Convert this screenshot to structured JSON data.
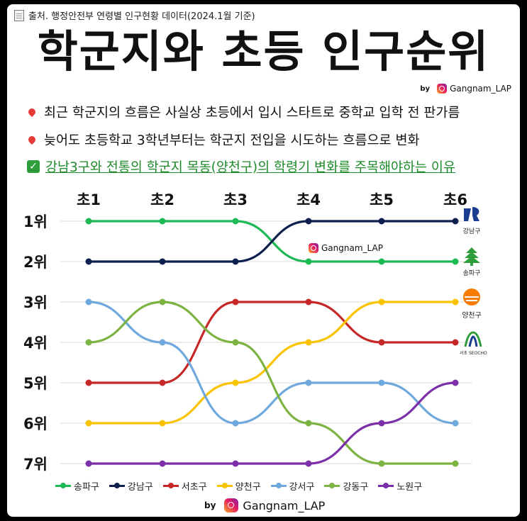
{
  "header": {
    "source": "출처. 행정안전부 연령별 인구현황 데이터(2024.1월 기준)",
    "title": "학군지와 초등 인구순위",
    "by": "by",
    "handle": "Gangnam_LAP"
  },
  "bullets": [
    "최근 학군지의 흐름은 사실상 초등에서 입시 스타트로 중학교 입학 전 판가름",
    "늦어도 초등학교 3학년부터는 학군지 전입을 시도하는 흐름으로 변화",
    "강남3구와 전통의 학군지 목동(양천구)의 학령기 변화를 주목해야하는 이유"
  ],
  "watermark": "Gangnam_LAP",
  "logos": {
    "gangnam": "강남구",
    "songpa": "송파구",
    "yangcheon": "양천구",
    "seocho": "서초 SEOCHO"
  },
  "chart_data": {
    "type": "line",
    "categories": [
      "초1",
      "초2",
      "초3",
      "초4",
      "초5",
      "초6"
    ],
    "y_labels": [
      "1위",
      "2위",
      "3위",
      "4위",
      "5위",
      "6위",
      "7위"
    ],
    "ylim": [
      1,
      7
    ],
    "y_inverted": true,
    "grid": "horizontal",
    "legend_position": "bottom",
    "series": [
      {
        "name": "송파구",
        "color": "#1db954",
        "values": [
          1,
          1,
          1,
          2,
          2,
          2
        ]
      },
      {
        "name": "강남구",
        "color": "#0d1f4f",
        "values": [
          2,
          2,
          2,
          1,
          1,
          1
        ]
      },
      {
        "name": "서초구",
        "color": "#c62828",
        "values": [
          5,
          5,
          3,
          3,
          4,
          4
        ]
      },
      {
        "name": "양천구",
        "color": "#f9c300",
        "values": [
          6,
          6,
          5,
          4,
          3,
          3
        ]
      },
      {
        "name": "강서구",
        "color": "#6fa8dc",
        "values": [
          3,
          4,
          6,
          5,
          5,
          6
        ]
      },
      {
        "name": "강동구",
        "color": "#7cb342",
        "values": [
          4,
          3,
          4,
          6,
          7,
          7
        ]
      },
      {
        "name": "노원구",
        "color": "#7b2fa8",
        "values": [
          7,
          7,
          7,
          7,
          6,
          5
        ]
      }
    ]
  },
  "footer": {
    "by": "by",
    "handle": "Gangnam_LAP"
  }
}
